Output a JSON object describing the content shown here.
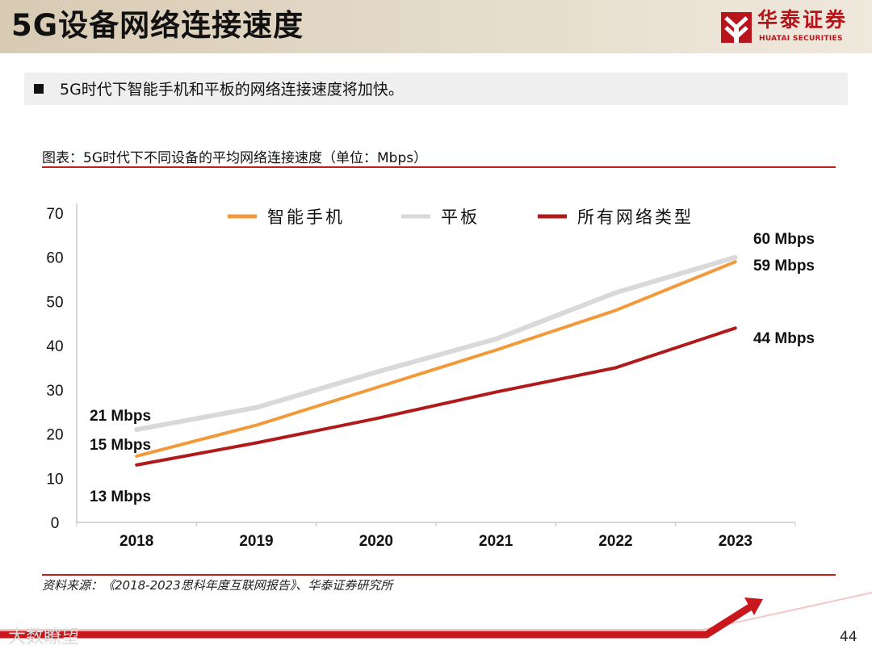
{
  "slide": {
    "title": "5G设备网络连接速度",
    "bullet": "5G时代下智能手机和平板的网络连接速度将加快。",
    "caption": "图表：5G时代下不同设备的平均网络连接速度（单位：Mbps）",
    "source": "资料来源：《2018-2023思科年度互联网报告》、华泰证券研究所",
    "page_number": "44",
    "watermark": "大数瞭望"
  },
  "logo": {
    "name_cn": "华泰证券",
    "name_en": "HUATAI SECURITIES",
    "color": "#b8141b"
  },
  "chart_data": {
    "type": "line",
    "title": "5G时代下不同设备的平均网络连接速度（单位：Mbps）",
    "unit": "Mbps",
    "categories": [
      "2018",
      "2019",
      "2020",
      "2021",
      "2022",
      "2023"
    ],
    "ylim": [
      0,
      70
    ],
    "yticks": [
      "0",
      "10",
      "20",
      "30",
      "40",
      "50",
      "60",
      "70"
    ],
    "xlabel": "",
    "ylabel": "",
    "grid": false,
    "legend_position": "top",
    "series": [
      {
        "name": "智能手机",
        "color": "#f29a3a",
        "values": [
          15,
          22,
          30.5,
          39,
          48,
          59
        ]
      },
      {
        "name": "平板",
        "color": "#d9d9d9",
        "values": [
          21,
          26,
          34,
          41.5,
          52,
          60
        ]
      },
      {
        "name": "所有网络类型",
        "color": "#b11a1a",
        "values": [
          13,
          18,
          23.5,
          29.5,
          35,
          44
        ]
      }
    ],
    "data_labels": [
      {
        "text": "21 Mbps",
        "series": "平板",
        "index": 0
      },
      {
        "text": "15 Mbps",
        "series": "智能手机",
        "index": 0
      },
      {
        "text": "13 Mbps",
        "series": "所有网络类型",
        "index": 0
      },
      {
        "text": "60 Mbps",
        "series": "平板",
        "index": 5
      },
      {
        "text": "59 Mbps",
        "series": "智能手机",
        "index": 5
      },
      {
        "text": "44 Mbps",
        "series": "所有网络类型",
        "index": 5
      }
    ]
  }
}
